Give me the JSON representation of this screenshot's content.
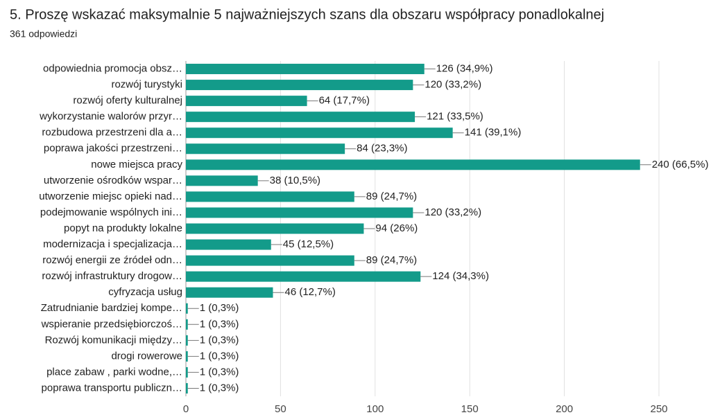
{
  "chart_data": {
    "type": "bar",
    "orientation": "horizontal",
    "title": "5. Proszę wskazać maksymalnie 5 najważniejszych szans dla obszaru współpracy ponadlokalnej",
    "subtitle": "361 odpowiedzi",
    "categories": [
      "odpowiednia promocja obsz…",
      "rozwój turystyki",
      "rozwój oferty kulturalnej",
      "wykorzystanie walorów przyr…",
      "rozbudowa przestrzeni dla a…",
      "poprawa jakości przestrzeni…",
      "nowe miejsca pracy",
      "utworzenie ośrodków wspar…",
      "utworzenie miejsc opieki nad…",
      "podejmowanie wspólnych ini…",
      "popyt na produkty lokalne",
      "modernizacja i specjalizacja…",
      "rozwój energii ze źródeł odn…",
      "rozwój infrastruktury drogow…",
      "cyfryzacja usług",
      "Zatrudnianie bardziej kompe…",
      "wspieranie przedsiębiorczoś…",
      "Rozwój komunikacji między…",
      "drogi rowerowe",
      "place zabaw , parki wodne,…",
      "poprawa transportu publiczn…"
    ],
    "values": [
      126,
      120,
      64,
      121,
      141,
      84,
      240,
      38,
      89,
      120,
      94,
      45,
      89,
      124,
      46,
      1,
      1,
      1,
      1,
      1,
      1
    ],
    "value_labels": [
      "126 (34,9%)",
      "120 (33,2%)",
      "64 (17,7%)",
      "121 (33,5%)",
      "141 (39,1%)",
      "84 (23,3%)",
      "240 (66,5%)",
      "38 (10,5%)",
      "89 (24,7%)",
      "120 (33,2%)",
      "94 (26%)",
      "45 (12,5%)",
      "89 (24,7%)",
      "124 (34,3%)",
      "46 (12,7%)",
      "1 (0,3%)",
      "1 (0,3%)",
      "1 (0,3%)",
      "1 (0,3%)",
      "1 (0,3%)",
      "1 (0,3%)"
    ],
    "color": "#139b8a",
    "xlim": [
      0,
      250
    ],
    "xticks": [
      0,
      50,
      100,
      150,
      200,
      250
    ],
    "grid": true
  }
}
